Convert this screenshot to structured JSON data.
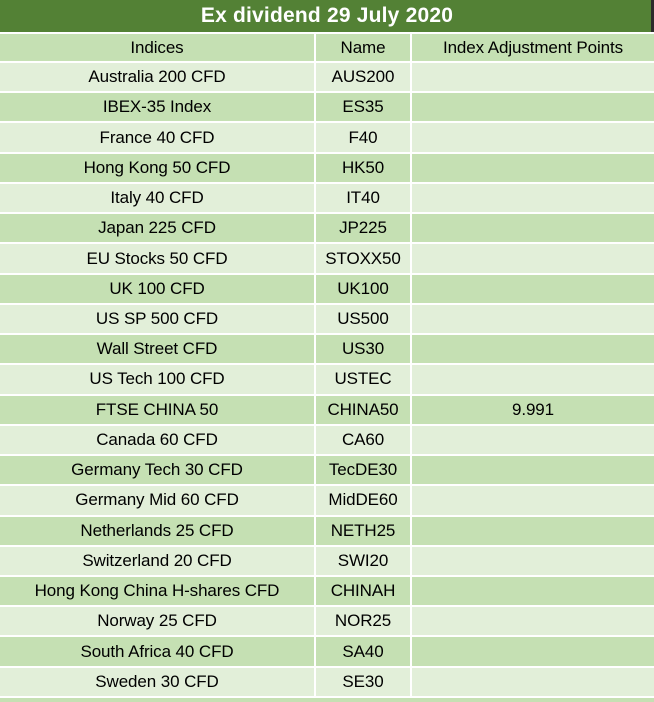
{
  "colors": {
    "header_green": "#538135",
    "row_medium_green": "#C5E0B3",
    "row_light_green": "#E2EFD9",
    "gridline_white": "#FFFFFF",
    "title_text_white": "#FFFFFF",
    "body_text_black": "#000000",
    "title_right_edge_dark": "#2B2B2B"
  },
  "table": {
    "title": "Ex dividend 29 July 2020",
    "columns": [
      "Indices",
      "Name",
      "Index Adjustment Points"
    ],
    "rows": [
      [
        "Australia 200 CFD",
        "AUS200",
        ""
      ],
      [
        "IBEX-35 Index",
        "ES35",
        ""
      ],
      [
        "France 40 CFD",
        "F40",
        ""
      ],
      [
        "Hong Kong 50 CFD",
        "HK50",
        ""
      ],
      [
        "Italy 40 CFD",
        "IT40",
        ""
      ],
      [
        "Japan 225 CFD",
        "JP225",
        ""
      ],
      [
        "EU Stocks 50 CFD",
        "STOXX50",
        ""
      ],
      [
        "UK 100 CFD",
        "UK100",
        ""
      ],
      [
        "US SP 500 CFD",
        "US500",
        ""
      ],
      [
        "Wall Street CFD",
        "US30",
        ""
      ],
      [
        "US Tech 100 CFD",
        "USTEC",
        ""
      ],
      [
        "FTSE CHINA 50",
        "CHINA50",
        "9.991"
      ],
      [
        "Canada 60 CFD",
        "CA60",
        ""
      ],
      [
        "Germany Tech 30 CFD",
        "TecDE30",
        ""
      ],
      [
        "Germany Mid 60 CFD",
        "MidDE60",
        ""
      ],
      [
        "Netherlands 25 CFD",
        "NETH25",
        ""
      ],
      [
        "Switzerland 20 CFD",
        "SWI20",
        ""
      ],
      [
        "Hong Kong China H-shares CFD",
        "CHINAH",
        ""
      ],
      [
        "Norway 25 CFD",
        "NOR25",
        ""
      ],
      [
        "South Africa 40 CFD",
        "SA40",
        ""
      ],
      [
        "Sweden 30 CFD",
        "SE30",
        ""
      ]
    ]
  }
}
